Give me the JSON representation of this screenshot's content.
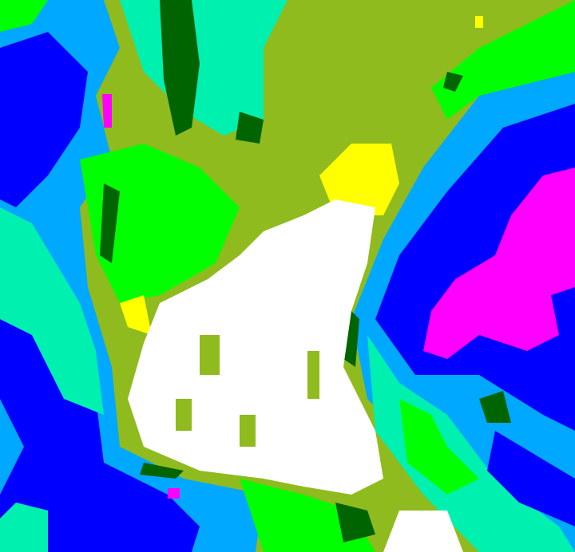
{
  "image": {
    "kind": "false-color classified satellite image",
    "palette": {
      "olive": "#8fbb1e",
      "white": "#ffffff",
      "yellow": "#ffff00",
      "bright_green": "#00ff00",
      "dark_green": "#006400",
      "aquamarine": "#00f0b0",
      "light_blue": "#00a8ff",
      "blue": "#0000ff",
      "magenta": "#ff00ff"
    }
  }
}
